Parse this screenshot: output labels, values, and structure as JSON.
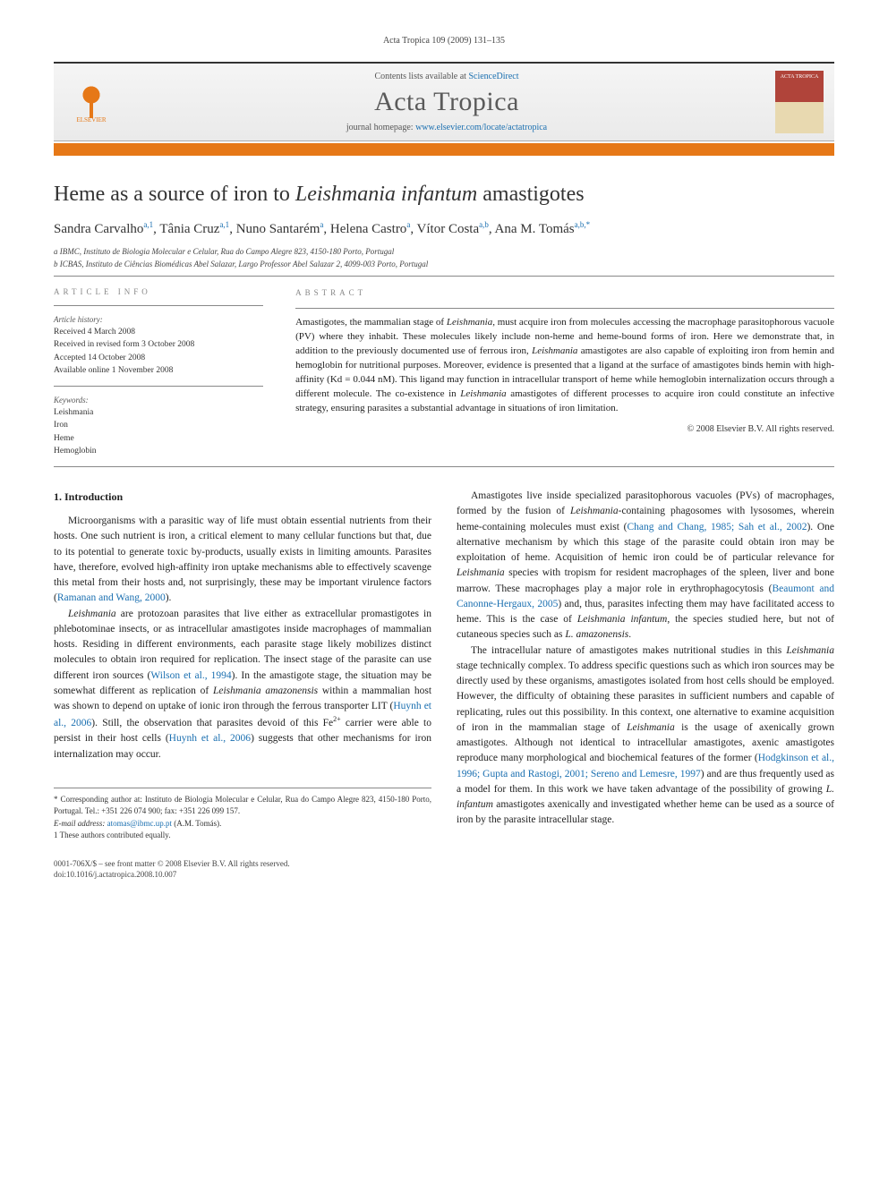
{
  "journal_ref": "Acta Tropica 109 (2009) 131–135",
  "header": {
    "contents_prefix": "Contents lists available at ",
    "contents_link": "ScienceDirect",
    "journal_name": "Acta Tropica",
    "homepage_prefix": "journal homepage: ",
    "homepage_link": "www.elsevier.com/locate/actatropica",
    "publisher": "ELSEVIER",
    "cover_text": "ACTA TROPICA"
  },
  "title_html": "Heme as a source of iron to <em>Leishmania infantum</em> amastigotes",
  "authors_html": "Sandra Carvalho<sup>a,1</sup>, Tânia Cruz<sup>a,1</sup>, Nuno Santarém<sup>a</sup>, Helena Castro<sup>a</sup>, Vítor Costa<sup>a,b</sup>, Ana M. Tomás<sup>a,b,*</sup>",
  "affiliations": [
    "a IBMC, Instituto de Biologia Molecular e Celular, Rua do Campo Alegre 823, 4150-180 Porto, Portugal",
    "b ICBAS, Instituto de Ciências Biomédicas Abel Salazar, Largo Professor Abel Salazar 2, 4099-003 Porto, Portugal"
  ],
  "info": {
    "head": "ARTICLE INFO",
    "history_label": "Article history:",
    "history": [
      "Received 4 March 2008",
      "Received in revised form 3 October 2008",
      "Accepted 14 October 2008",
      "Available online 1 November 2008"
    ],
    "keywords_label": "Keywords:",
    "keywords": [
      "Leishmania",
      "Iron",
      "Heme",
      "Hemoglobin"
    ]
  },
  "abstract": {
    "head": "ABSTRACT",
    "text_html": "Amastigotes, the mammalian stage of <em>Leishmania</em>, must acquire iron from molecules accessing the macrophage parasitophorous vacuole (PV) where they inhabit. These molecules likely include non-heme and heme-bound forms of iron. Here we demonstrate that, in addition to the previously documented use of ferrous iron, <em>Leishmania</em> amastigotes are also capable of exploiting iron from hemin and hemoglobin for nutritional purposes. Moreover, evidence is presented that a ligand at the surface of amastigotes binds hemin with high-affinity (Kd = 0.044 nM). This ligand may function in intracellular transport of heme while hemoglobin internalization occurs through a different molecule. The co-existence in <em>Leishmania</em> amastigotes of different processes to acquire iron could constitute an infective strategy, ensuring parasites a substantial advantage in situations of iron limitation.",
    "copyright": "© 2008 Elsevier B.V. All rights reserved."
  },
  "section1": {
    "title": "1. Introduction",
    "left_paras_html": [
      "Microorganisms with a parasitic way of life must obtain essential nutrients from their hosts. One such nutrient is iron, a critical element to many cellular functions but that, due to its potential to generate toxic by-products, usually exists in limiting amounts. Parasites have, therefore, evolved high-affinity iron uptake mechanisms able to effectively scavenge this metal from their hosts and, not surprisingly, these may be important virulence factors (<a class=\"ref-link\" href=\"#\">Ramanan and Wang, 2000</a>).",
      "<em>Leishmania</em> are protozoan parasites that live either as extracellular promastigotes in phlebotominae insects, or as intracellular amastigotes inside macrophages of mammalian hosts. Residing in different environments, each parasite stage likely mobilizes distinct molecules to obtain iron required for replication. The insect stage of the parasite can use different iron sources (<a class=\"ref-link\" href=\"#\">Wilson et al., 1994</a>). In the amastigote stage, the situation may be somewhat different as replication of <em>Leishmania amazonensis</em> within a mammalian host was shown to depend on uptake of ionic iron through the ferrous transporter LIT (<a class=\"ref-link\" href=\"#\">Huynh et al., 2006</a>). Still, the observation that parasites devoid of this Fe<sup class=\"fe\">2+</sup> carrier were able to persist in their host cells (<a class=\"ref-link\" href=\"#\">Huynh et al., 2006</a>) suggests that other mechanisms for iron internalization may occur."
    ],
    "right_paras_html": [
      "Amastigotes live inside specialized parasitophorous vacuoles (PVs) of macrophages, formed by the fusion of <em>Leishmania</em>-containing phagosomes with lysosomes, wherein heme-containing molecules must exist (<a class=\"ref-link\" href=\"#\">Chang and Chang, 1985; Sah et al., 2002</a>). One alternative mechanism by which this stage of the parasite could obtain iron may be exploitation of heme. Acquisition of hemic iron could be of particular relevance for <em>Leishmania</em> species with tropism for resident macrophages of the spleen, liver and bone marrow. These macrophages play a major role in erythrophagocytosis (<a class=\"ref-link\" href=\"#\">Beaumont and Canonne-Hergaux, 2005</a>) and, thus, parasites infecting them may have facilitated access to heme. This is the case of <em>Leishmania infantum</em>, the species studied here, but not of cutaneous species such as <em>L. amazonensis</em>.",
      "The intracellular nature of amastigotes makes nutritional studies in this <em>Leishmania</em> stage technically complex. To address specific questions such as which iron sources may be directly used by these organisms, amastigotes isolated from host cells should be employed. However, the difficulty of obtaining these parasites in sufficient numbers and capable of replicating, rules out this possibility. In this context, one alternative to examine acquisition of iron in the mammalian stage of <em>Leishmania</em> is the usage of axenically grown amastigotes. Although not identical to intracellular amastigotes, axenic amastigotes reproduce many morphological and biochemical features of the former (<a class=\"ref-link\" href=\"#\">Hodgkinson et al., 1996; Gupta and Rastogi, 2001; Sereno and Lemesre, 1997</a>) and are thus frequently used as a model for them. In this work we have taken advantage of the possibility of growing <em>L. infantum</em> amastigotes axenically and investigated whether heme can be used as a source of iron by the parasite intracellular stage."
    ]
  },
  "footnotes": {
    "corr": "* Corresponding author at: Instituto de Biologia Molecular e Celular, Rua do Campo Alegre 823, 4150-180 Porto, Portugal. Tel.: +351 226 074 900; fax: +351 226 099 157.",
    "email_label": "E-mail address:",
    "email": "atomas@ibmc.up.pt",
    "email_who": "(A.M. Tomás).",
    "equal": "1 These authors contributed equally."
  },
  "footer": {
    "line1": "0001-706X/$ – see front matter © 2008 Elsevier B.V. All rights reserved.",
    "line2": "doi:10.1016/j.actatropica.2008.10.007"
  },
  "colors": {
    "accent": "#e67817",
    "link": "#1a6fb0",
    "rule": "#888888",
    "text": "#222222"
  }
}
